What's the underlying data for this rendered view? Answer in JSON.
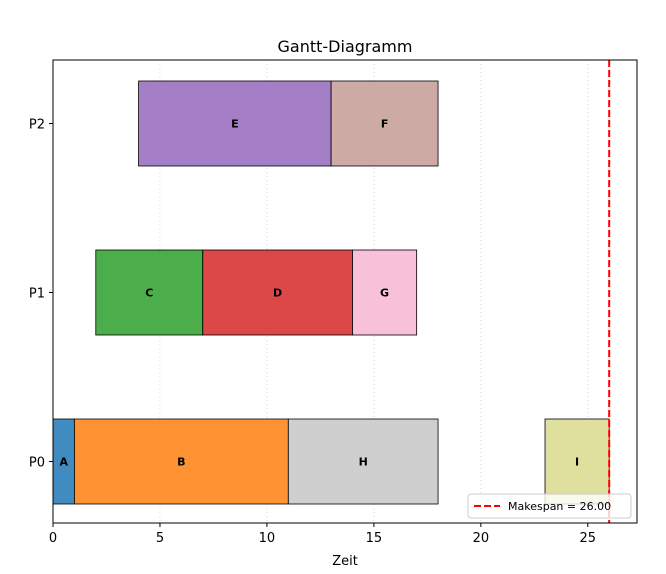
{
  "chart_data": {
    "type": "gantt",
    "title": "Gantt-Diagramm",
    "xlabel": "Zeit",
    "ylabel": "",
    "xlim": [
      0,
      27.3
    ],
    "x_ticks": [
      0,
      5,
      10,
      15,
      20,
      25
    ],
    "grid": "x-dotted",
    "rows": [
      "P0",
      "P1",
      "P2"
    ],
    "tasks": [
      {
        "label": "A",
        "row": "P0",
        "start": 0,
        "end": 1,
        "color": "#1f77b4"
      },
      {
        "label": "B",
        "row": "P0",
        "start": 1,
        "end": 11,
        "color": "#ff7f0e"
      },
      {
        "label": "H",
        "row": "P0",
        "start": 11,
        "end": 18,
        "color": "#c7c7c7"
      },
      {
        "label": "I",
        "row": "P0",
        "start": 23,
        "end": 26,
        "color": "#dbdb8d"
      },
      {
        "label": "C",
        "row": "P1",
        "start": 2,
        "end": 7,
        "color": "#2ca02c"
      },
      {
        "label": "D",
        "row": "P1",
        "start": 7,
        "end": 14,
        "color": "#d62728"
      },
      {
        "label": "G",
        "row": "P1",
        "start": 14,
        "end": 17,
        "color": "#f7b6d2"
      },
      {
        "label": "E",
        "row": "P2",
        "start": 4,
        "end": 13,
        "color": "#9467bd"
      },
      {
        "label": "F",
        "row": "P2",
        "start": 13,
        "end": 18,
        "color": "#c49c94"
      }
    ],
    "makespan": {
      "value": 26,
      "label": "Makespan = 26.00",
      "color": "#ff0000"
    },
    "legend_position": "lower-right"
  }
}
